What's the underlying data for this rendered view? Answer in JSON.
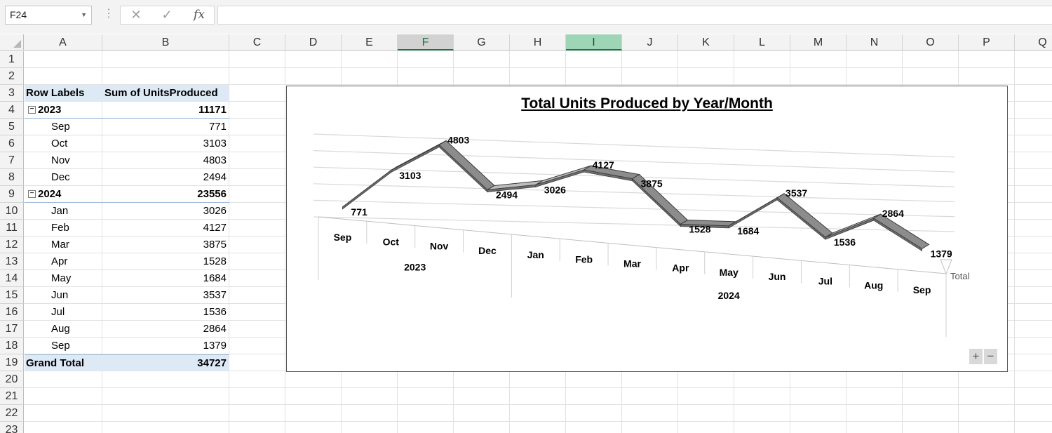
{
  "formula_bar": {
    "name_box": "F24",
    "cancel_icon": "cancel-icon",
    "enter_icon": "checkmark-icon",
    "fx_label": "fx",
    "formula": ""
  },
  "columns": [
    "A",
    "B",
    "C",
    "D",
    "E",
    "F",
    "G",
    "H",
    "I",
    "J",
    "K",
    "L",
    "M",
    "N",
    "O",
    "P",
    "Q"
  ],
  "rows": [
    "1",
    "2",
    "3",
    "4",
    "5",
    "6",
    "7",
    "8",
    "9",
    "10",
    "11",
    "12",
    "13",
    "14",
    "15",
    "16",
    "17",
    "18",
    "19",
    "20",
    "21",
    "22",
    "23"
  ],
  "pivot": {
    "header_row_labels": "Row Labels",
    "header_value": "Sum of UnitsProduced",
    "rows": [
      {
        "label": "2023",
        "value": "11171",
        "type": "year"
      },
      {
        "label": "Sep",
        "value": "771",
        "type": "month"
      },
      {
        "label": "Oct",
        "value": "3103",
        "type": "month"
      },
      {
        "label": "Nov",
        "value": "4803",
        "type": "month"
      },
      {
        "label": "Dec",
        "value": "2494",
        "type": "month"
      },
      {
        "label": "2024",
        "value": "23556",
        "type": "year"
      },
      {
        "label": "Jan",
        "value": "3026",
        "type": "month"
      },
      {
        "label": "Feb",
        "value": "4127",
        "type": "month"
      },
      {
        "label": "Mar",
        "value": "3875",
        "type": "month"
      },
      {
        "label": "Apr",
        "value": "1528",
        "type": "month"
      },
      {
        "label": "May",
        "value": "1684",
        "type": "month"
      },
      {
        "label": "Jun",
        "value": "3537",
        "type": "month"
      },
      {
        "label": "Jul",
        "value": "1536",
        "type": "month"
      },
      {
        "label": "Aug",
        "value": "2864",
        "type": "month"
      },
      {
        "label": "Sep",
        "value": "1379",
        "type": "month"
      }
    ],
    "grand_total_label": "Grand Total",
    "grand_total_value": "34727"
  },
  "chart_data": {
    "type": "line",
    "title": "Total Units Produced by Year/Month",
    "categories": [
      "Sep",
      "Oct",
      "Nov",
      "Dec",
      "Jan",
      "Feb",
      "Mar",
      "Apr",
      "May",
      "Jun",
      "Jul",
      "Aug",
      "Sep"
    ],
    "groups": [
      {
        "label": "2023",
        "count": 4
      },
      {
        "label": "2024",
        "count": 9
      }
    ],
    "series": [
      {
        "name": "Total",
        "values": [
          771,
          3103,
          4803,
          2494,
          3026,
          4127,
          3875,
          1528,
          1684,
          3537,
          1536,
          2864,
          1379
        ]
      }
    ],
    "ylim": [
      0,
      6000
    ],
    "grid": true,
    "style": "3d-line",
    "colors": {
      "ribbon": "#a6a6a6",
      "ribbon_edge": "#3a3a3a",
      "grid": "#d9d9d9"
    }
  },
  "zoom": {
    "plus": "+",
    "minus": "−"
  }
}
